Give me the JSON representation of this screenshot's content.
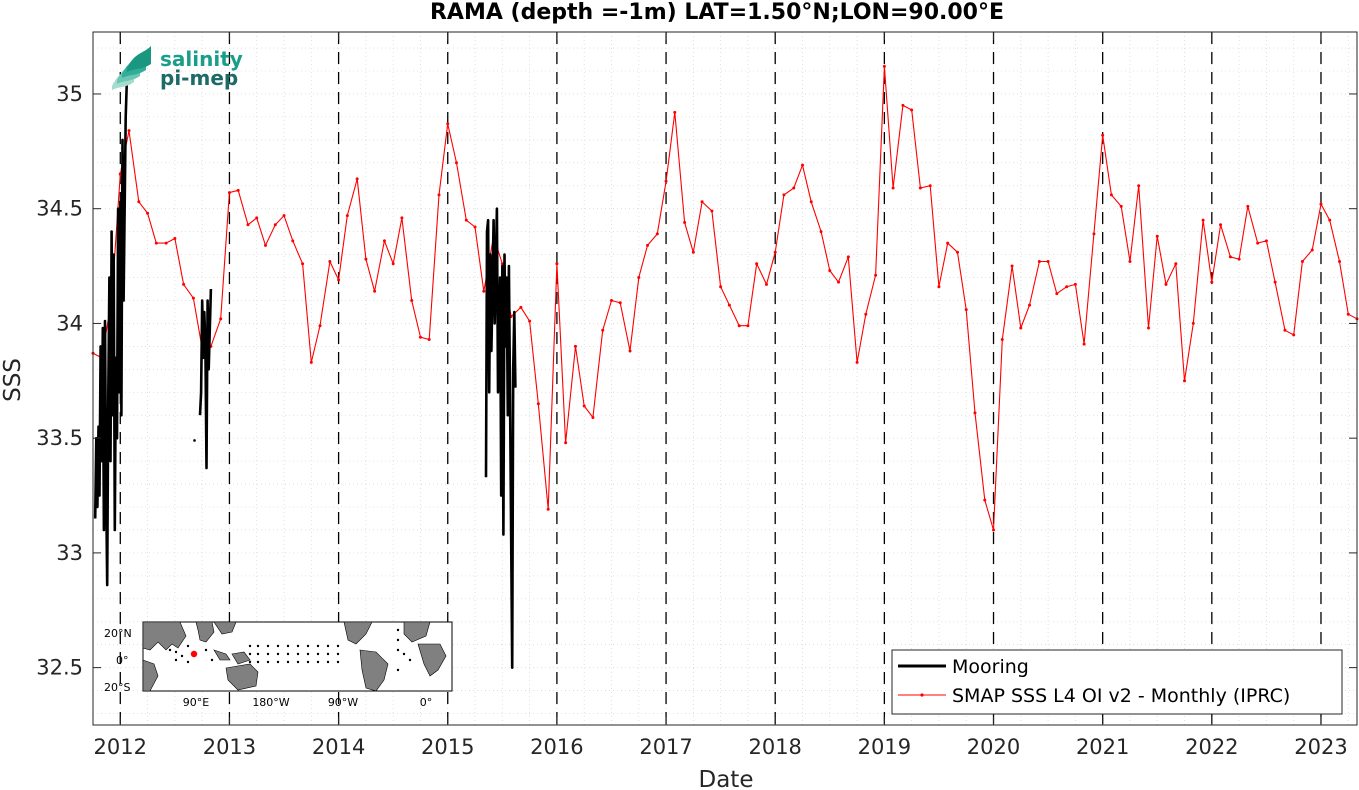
{
  "chart_data": {
    "type": "line",
    "title": "RAMA (depth =-1m) LAT=1.50°N;LON=90.00°E",
    "xlabel": "Date",
    "ylabel": "SSS",
    "xlim": [
      2011.75,
      2023.33
    ],
    "ylim": [
      32.25,
      35.27
    ],
    "x_ticks": [
      2012,
      2013,
      2014,
      2015,
      2016,
      2017,
      2018,
      2019,
      2020,
      2021,
      2022,
      2023
    ],
    "x_tick_labels": [
      "2012",
      "2013",
      "2014",
      "2015",
      "2016",
      "2017",
      "2018",
      "2019",
      "2020",
      "2021",
      "2022",
      "2023"
    ],
    "y_ticks": [
      32.5,
      33,
      33.5,
      34,
      34.5,
      35
    ],
    "y_tick_labels": [
      "32.5",
      "33",
      "33.5",
      "34",
      "34.5",
      "35"
    ],
    "grid": true,
    "year_lines": "dashed",
    "legend_position": "bottom-right",
    "series": [
      {
        "name": "Mooring",
        "color": "#000000",
        "segments": [
          [
            [
              2011.77,
              33.15
            ],
            [
              2011.78,
              33.5
            ],
            [
              2011.79,
              33.2
            ],
            [
              2011.8,
              33.55
            ],
            [
              2011.81,
              33.25
            ],
            [
              2011.82,
              33.9
            ],
            [
              2011.83,
              33.4
            ],
            [
              2011.84,
              33.98
            ],
            [
              2011.85,
              33.1
            ],
            [
              2011.86,
              34.01
            ],
            [
              2011.87,
              33.3
            ],
            [
              2011.88,
              32.86
            ],
            [
              2011.89,
              33.7
            ],
            [
              2011.9,
              34.2
            ],
            [
              2011.91,
              33.4
            ],
            [
              2011.92,
              34.4
            ],
            [
              2011.93,
              33.6
            ],
            [
              2011.94,
              34.3
            ],
            [
              2011.95,
              33.1
            ],
            [
              2011.96,
              33.85
            ],
            [
              2011.97,
              33.5
            ],
            [
              2011.98,
              34.5
            ],
            [
              2011.99,
              33.7
            ],
            [
              2012.0,
              34.53
            ],
            [
              2012.01,
              33.6
            ],
            [
              2012.02,
              34.8
            ],
            [
              2012.03,
              34.1
            ],
            [
              2012.05,
              34.9
            ],
            [
              2012.06,
              35.05
            ]
          ],
          [
            [
              2012.73,
              33.6
            ],
            [
              2012.74,
              33.7
            ],
            [
              2012.75,
              34.1
            ],
            [
              2012.76,
              33.85
            ],
            [
              2012.77,
              34.05
            ],
            [
              2012.78,
              33.9
            ],
            [
              2012.79,
              33.37
            ],
            [
              2012.8,
              34.1
            ],
            [
              2012.81,
              33.8
            ],
            [
              2012.83,
              34.15
            ]
          ],
          [
            [
              2015.35,
              33.33
            ],
            [
              2015.36,
              34.4
            ],
            [
              2015.37,
              34.45
            ],
            [
              2015.38,
              33.7
            ],
            [
              2015.39,
              34.3
            ],
            [
              2015.4,
              33.88
            ],
            [
              2015.42,
              34.45
            ],
            [
              2015.43,
              34.0
            ],
            [
              2015.45,
              34.5
            ],
            [
              2015.46,
              33.7
            ],
            [
              2015.48,
              34.2
            ],
            [
              2015.49,
              33.25
            ],
            [
              2015.5,
              34.25
            ],
            [
              2015.51,
              33.08
            ],
            [
              2015.52,
              34.3
            ],
            [
              2015.53,
              33.9
            ],
            [
              2015.54,
              34.2
            ],
            [
              2015.55,
              33.6
            ],
            [
              2015.56,
              34.25
            ],
            [
              2015.57,
              33.7
            ],
            [
              2015.59,
              32.5
            ],
            [
              2015.6,
              33.8
            ],
            [
              2015.61,
              34.05
            ],
            [
              2015.62,
              33.72
            ]
          ]
        ]
      },
      {
        "name": "SMAP SSS L4 OI v2 - Monthly (IPRC)",
        "color": "#ff0000",
        "x": [
          2011.75,
          2011.83,
          2011.92,
          2012.0,
          2012.08,
          2012.17,
          2012.25,
          2012.33,
          2012.42,
          2012.5,
          2012.58,
          2012.67,
          2012.75,
          2012.83,
          2012.92,
          2013.0,
          2013.08,
          2013.17,
          2013.25,
          2013.33,
          2013.42,
          2013.5,
          2013.58,
          2013.67,
          2013.75,
          2013.83,
          2013.92,
          2014.0,
          2014.08,
          2014.17,
          2014.25,
          2014.33,
          2014.42,
          2014.5,
          2014.58,
          2014.67,
          2014.75,
          2014.83,
          2014.92,
          2015.0,
          2015.08,
          2015.17,
          2015.25,
          2015.33,
          2015.42,
          2015.5,
          2015.58,
          2015.67,
          2015.75,
          2015.83,
          2015.92,
          2016.0,
          2016.08,
          2016.17,
          2016.25,
          2016.33,
          2016.42,
          2016.5,
          2016.58,
          2016.67,
          2016.75,
          2016.83,
          2016.92,
          2017.0,
          2017.08,
          2017.17,
          2017.25,
          2017.33,
          2017.42,
          2017.5,
          2017.58,
          2017.67,
          2017.75,
          2017.83,
          2017.92,
          2018.0,
          2018.08,
          2018.17,
          2018.25,
          2018.33,
          2018.42,
          2018.5,
          2018.58,
          2018.67,
          2018.75,
          2018.83,
          2018.92,
          2019.0,
          2019.08,
          2019.17,
          2019.25,
          2019.33,
          2019.42,
          2019.5,
          2019.58,
          2019.67,
          2019.75,
          2019.83,
          2019.92,
          2020.0,
          2020.08,
          2020.17,
          2020.25,
          2020.33,
          2020.42,
          2020.5,
          2020.58,
          2020.67,
          2020.75,
          2020.83,
          2020.92,
          2021.0,
          2021.08,
          2021.17,
          2021.25,
          2021.33,
          2021.42,
          2021.5,
          2021.58,
          2021.67,
          2021.75,
          2021.83,
          2021.92,
          2022.0,
          2022.08,
          2022.17,
          2022.25,
          2022.33,
          2022.42,
          2022.5,
          2022.58,
          2022.67,
          2022.75,
          2022.83,
          2022.92,
          2023.0,
          2023.08,
          2023.17,
          2023.25,
          2023.33
        ],
        "values": [
          33.87,
          33.85,
          34.1,
          34.65,
          34.84,
          34.53,
          34.48,
          34.35,
          34.35,
          34.37,
          34.17,
          34.11,
          33.89,
          33.9,
          34.02,
          34.57,
          34.58,
          34.43,
          34.46,
          34.34,
          34.43,
          34.47,
          34.36,
          34.26,
          33.83,
          33.99,
          34.27,
          34.19,
          34.47,
          34.63,
          34.28,
          34.14,
          34.36,
          34.26,
          34.46,
          34.1,
          33.94,
          33.93,
          34.56,
          34.87,
          34.7,
          34.45,
          34.42,
          34.14,
          34.38,
          34.26,
          34.03,
          34.07,
          34.01,
          33.65,
          33.19,
          34.26,
          33.48,
          33.9,
          33.64,
          33.59,
          33.97,
          34.1,
          34.09,
          33.88,
          34.2,
          34.34,
          34.39,
          34.62,
          34.92,
          34.44,
          34.31,
          34.53,
          34.49,
          34.16,
          34.08,
          33.99,
          33.99,
          34.26,
          34.17,
          34.31,
          34.56,
          34.59,
          34.69,
          34.53,
          34.4,
          34.23,
          34.18,
          34.29,
          33.83,
          34.04,
          34.21,
          35.12,
          34.59,
          34.95,
          34.93,
          34.59,
          34.6,
          34.16,
          34.35,
          34.31,
          34.06,
          33.61,
          33.23,
          33.1,
          33.93,
          34.25,
          33.98,
          34.08,
          34.27,
          34.27,
          34.13,
          34.16,
          34.17,
          33.91,
          34.39,
          34.82,
          34.56,
          34.51,
          34.27,
          34.6,
          33.98,
          34.38,
          34.17,
          34.26,
          33.75,
          34.0,
          34.45,
          34.18,
          34.43,
          34.29,
          34.28,
          34.51,
          34.35,
          34.36,
          34.18,
          33.97,
          33.95,
          34.27,
          34.32,
          34.52,
          34.45,
          34.27,
          34.04,
          34.02
        ]
      }
    ]
  },
  "logo": {
    "line1": "salinity",
    "line2": "pi-mep"
  },
  "inset_map": {
    "lat_labels": [
      "20°N",
      "0°",
      "20°S"
    ],
    "lon_labels": [
      "90°E",
      "180°W",
      "90°W",
      "0°"
    ]
  }
}
